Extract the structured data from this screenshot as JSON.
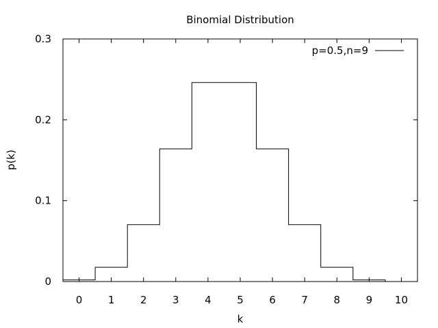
{
  "chart_data": {
    "type": "line",
    "style": "step",
    "title": "Binomial Distribution",
    "xlabel": "k",
    "ylabel": "p(k)",
    "xlim": [
      -0.5,
      10.5
    ],
    "ylim": [
      0,
      0.3
    ],
    "x_ticks": [
      "0",
      "1",
      "2",
      "3",
      "4",
      "5",
      "6",
      "7",
      "8",
      "9",
      "10"
    ],
    "y_ticks": [
      "0",
      "0.1",
      "0.2",
      "0.3"
    ],
    "grid": false,
    "legend_position": "top-right",
    "series": [
      {
        "name": "p=0.5,n=9",
        "color": "#000000",
        "x": [
          0,
          1,
          2,
          3,
          4,
          5,
          6,
          7,
          8,
          9,
          10
        ],
        "values": [
          0.002,
          0.0176,
          0.0703,
          0.1641,
          0.2461,
          0.2461,
          0.1641,
          0.0703,
          0.0176,
          0.002,
          0
        ]
      }
    ]
  }
}
